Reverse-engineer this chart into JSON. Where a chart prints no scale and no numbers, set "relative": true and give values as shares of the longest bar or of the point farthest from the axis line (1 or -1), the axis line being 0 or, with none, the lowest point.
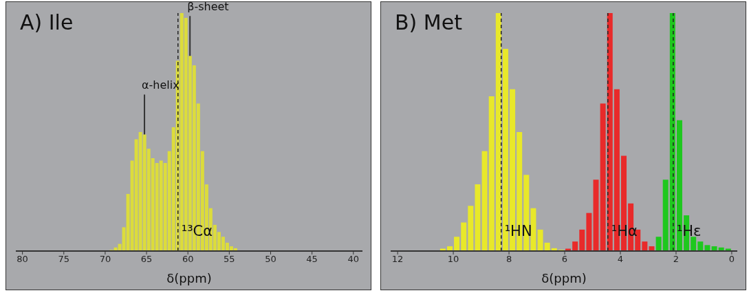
{
  "chart_data": [
    {
      "type": "bar",
      "title": "A) Ile",
      "xlabel": "δ(ppm)",
      "relative": true,
      "color": "#dcdc3c",
      "x": [
        54.25,
        54.75,
        55.25,
        55.75,
        56.25,
        56.75,
        57.25,
        57.75,
        58.25,
        58.75,
        59.25,
        59.75,
        60.25,
        60.75,
        61.25,
        61.75,
        62.25,
        62.75,
        63.25,
        63.75,
        64.25,
        64.75,
        65.25,
        65.75,
        66.25,
        66.75,
        67.25,
        67.75,
        68.25,
        68.75,
        69.25
      ],
      "values": [
        0.012,
        0.02,
        0.035,
        0.06,
        0.08,
        0.11,
        0.18,
        0.28,
        0.42,
        0.62,
        0.78,
        0.82,
        0.98,
        1,
        0.8,
        0.52,
        0.42,
        0.37,
        0.38,
        0.37,
        0.39,
        0.43,
        0.49,
        0.5,
        0.47,
        0.38,
        0.24,
        0.1,
        0.03,
        0.015,
        0.005
      ],
      "xlim": [
        80.8,
        38.9
      ],
      "xticks": [
        80,
        75,
        70,
        65,
        60,
        55,
        50,
        45,
        40
      ],
      "ref_lines": [
        {
          "axis": "x",
          "value": 61.2,
          "label": "¹³Cα",
          "line_style": "dashed",
          "color": "#222222"
        }
      ],
      "annotations": [
        {
          "text": "α-helix",
          "x": 65.25,
          "y": 0.49
        },
        {
          "text": "β-sheet",
          "x": 59.75,
          "y": 0.82
        }
      ]
    },
    {
      "type": "bar",
      "title": "B) Met",
      "xlabel": "δ(ppm)",
      "relative": true,
      "series": [
        {
          "color": "#e8e82a",
          "x": [
            6.125,
            6.375,
            6.625,
            6.875,
            7.125,
            7.375,
            7.625,
            7.875,
            8.125,
            8.375,
            8.625,
            8.875,
            9.125,
            9.375,
            9.625,
            9.875,
            10.125,
            10.375
          ],
          "values": [
            0.005,
            0.012,
            0.035,
            0.09,
            0.18,
            0.32,
            0.5,
            0.68,
            0.85,
            1,
            0.65,
            0.42,
            0.28,
            0.19,
            0.12,
            0.06,
            0.02,
            0.01
          ]
        },
        {
          "color": "#e82a2a",
          "x": [
            2.875,
            3.125,
            3.375,
            3.625,
            3.875,
            4.125,
            4.375,
            4.625,
            4.875,
            5.125,
            5.375,
            5.625,
            5.875
          ],
          "values": [
            0.02,
            0.04,
            0.09,
            0.2,
            0.4,
            0.68,
            1,
            0.62,
            0.3,
            0.16,
            0.09,
            0.04,
            0.01
          ]
        },
        {
          "color": "#1ec81e",
          "x": [
            0.125,
            0.375,
            0.625,
            0.875,
            1.125,
            1.375,
            1.625,
            1.875,
            2.125,
            2.375,
            2.625
          ],
          "values": [
            0.01,
            0.015,
            0.02,
            0.025,
            0.04,
            0.06,
            0.15,
            0.55,
            1,
            0.3,
            0.06
          ]
        }
      ],
      "xlim": [
        12.25,
        -0.2
      ],
      "xticks": [
        12,
        10,
        8,
        6,
        4,
        2,
        0
      ],
      "ref_lines": [
        {
          "axis": "x",
          "value": 8.28,
          "label": "¹HN",
          "line_style": "dashed",
          "color": "#222222"
        },
        {
          "axis": "x",
          "value": 4.45,
          "label": "¹Hα",
          "line_style": "dashed",
          "color": "#222222"
        },
        {
          "axis": "x",
          "value": 2.1,
          "label": "¹Hε",
          "line_style": "dashed",
          "color": "#222222"
        }
      ]
    }
  ]
}
